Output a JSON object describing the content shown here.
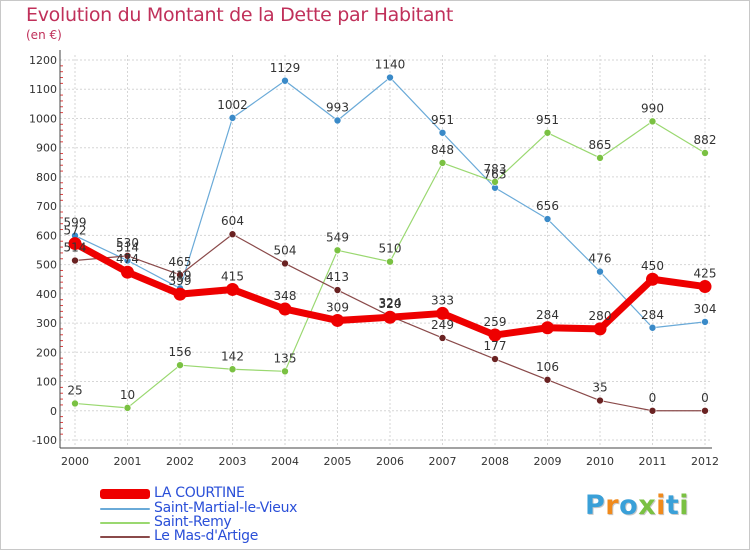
{
  "title": "Evolution du Montant de la Dette par Habitant",
  "unit": "(en €)",
  "logo": {
    "text": "Proxiti",
    "colors": [
      "#3aa0d8",
      "#f08a1c",
      "#3aa0d8",
      "#7ac142",
      "#f08a1c",
      "#3aa0d8",
      "#7ac142"
    ]
  },
  "chart_data": {
    "type": "line",
    "x": [
      "2000",
      "2001",
      "2002",
      "2003",
      "2004",
      "2005",
      "2006",
      "2007",
      "2008",
      "2009",
      "2010",
      "2011",
      "2012"
    ],
    "ylim": [
      -100,
      1200
    ],
    "yticks": [
      "-100",
      "0",
      "100",
      "200",
      "300",
      "400",
      "500",
      "600",
      "700",
      "800",
      "900",
      "1000",
      "1100",
      "1200"
    ],
    "grid": true,
    "legend_position": "bottom-left",
    "series": [
      {
        "name": "Saint-Martial-le-Vieux",
        "color": "#6aaad8",
        "point_color": "#3a8ac8",
        "width": 1.2,
        "values": [
          599,
          514,
          419,
          1002,
          1129,
          993,
          1140,
          951,
          763,
          656,
          476,
          284,
          304
        ],
        "labels": [
          "599",
          "514",
          "419",
          "1002",
          "1129",
          "993",
          "1140",
          "951",
          "763",
          "656",
          "476",
          "284",
          "304"
        ]
      },
      {
        "name": "Saint-Remy",
        "color": "#9ad870",
        "point_color": "#7ac142",
        "width": 1.2,
        "values": [
          25,
          10,
          156,
          142,
          135,
          549,
          510,
          848,
          783,
          951,
          865,
          990,
          882
        ],
        "labels": [
          "25",
          "10",
          "156",
          "142",
          "135",
          "549",
          "510",
          "848",
          "783",
          "951",
          "865",
          "990",
          "882"
        ]
      },
      {
        "name": "Le Mas-d'Artige",
        "color": "#8a4a4a",
        "point_color": "#6a2222",
        "width": 1.2,
        "values": [
          514,
          530,
          465,
          604,
          504,
          413,
          324,
          249,
          177,
          106,
          35,
          0,
          0
        ],
        "labels": [
          "514",
          "530",
          "465",
          "604",
          "504",
          "413",
          "324",
          "249",
          "177",
          "106",
          "35",
          "0",
          "0"
        ]
      },
      {
        "name": "LA COURTINE",
        "color": "#ee0000",
        "point_color": "#ee0000",
        "width": 7,
        "values": [
          572,
          474,
          399,
          415,
          348,
          309,
          320,
          333,
          259,
          284,
          280,
          450,
          425
        ],
        "labels": [
          "572",
          "474",
          "399",
          "415",
          "348",
          "309",
          "320",
          "333",
          "259",
          "284",
          "280",
          "450",
          "425"
        ]
      }
    ],
    "legend": [
      {
        "name": "LA COURTINE",
        "color": "#ee0000",
        "thickness": 10
      },
      {
        "name": "Saint-Martial-le-Vieux",
        "color": "#6aaad8",
        "thickness": 2
      },
      {
        "name": "Saint-Remy",
        "color": "#9ad870",
        "thickness": 2
      },
      {
        "name": "Le Mas-d'Artige",
        "color": "#8a4a4a",
        "thickness": 2
      }
    ]
  }
}
